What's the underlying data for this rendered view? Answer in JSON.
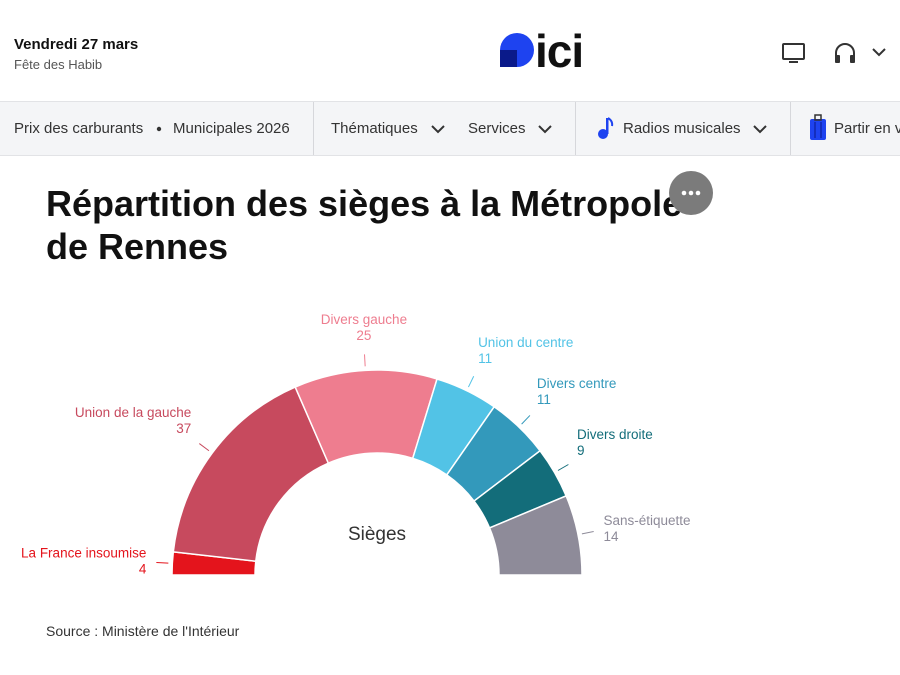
{
  "header": {
    "date": "Vendredi 27 mars",
    "saint": "Fête des Habib",
    "logo": "ici"
  },
  "nav": {
    "items": [
      "Prix des carburants",
      "Municipales 2026",
      "Thématiques",
      "Services",
      "Radios musicales",
      "Partir en v"
    ]
  },
  "chart_data": {
    "type": "half-donut",
    "title": "Répartition des sièges à la Métropole de Rennes",
    "center_label": "Sièges",
    "categories": [
      "La France insoumise",
      "Union de la gauche",
      "Divers gauche",
      "Union du centre",
      "Divers centre",
      "Divers droite",
      "Sans-étiquette"
    ],
    "values": [
      4,
      37,
      25,
      11,
      11,
      9,
      14
    ],
    "colors": [
      "#e4141c",
      "#c74a5e",
      "#ee7d8f",
      "#52c3e6",
      "#3399bb",
      "#136d7a",
      "#8e8b99"
    ],
    "source": "Source : Ministère de l'Intérieur"
  }
}
